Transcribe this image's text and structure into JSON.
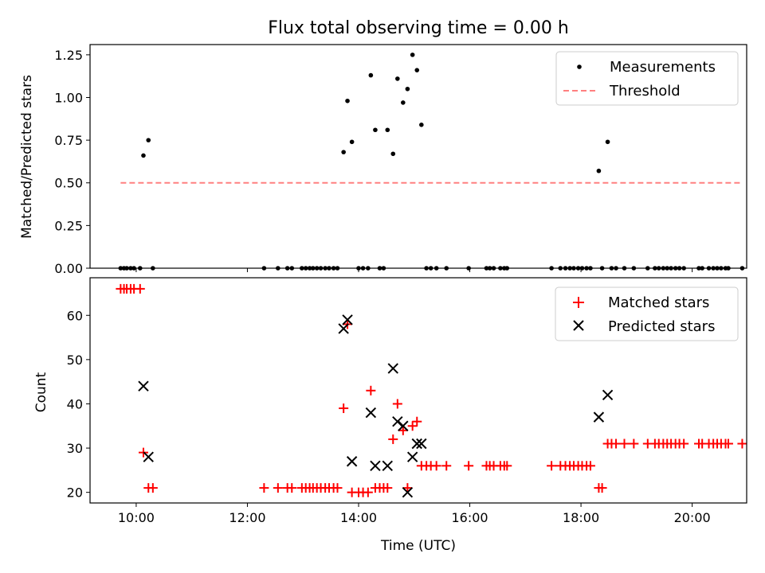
{
  "chart_data": [
    {
      "type": "scatter",
      "title": "Flux total observing time = 0.00 h",
      "xlabel": "",
      "ylabel": "Matched/Predicted stars",
      "xlim": [
        9.17,
        20.98
      ],
      "ylim": [
        0.0,
        1.31
      ],
      "yticks": [
        0.0,
        0.25,
        0.5,
        0.75,
        1.0,
        1.25
      ],
      "ytick_labels": [
        "0.00",
        "0.25",
        "0.50",
        "0.75",
        "1.00",
        "1.25"
      ],
      "xticks": [
        10,
        12,
        14,
        16,
        18,
        20
      ],
      "legend": {
        "placement": "top-right",
        "entries": [
          "Measurements",
          "Threshold"
        ]
      },
      "series": [
        {
          "name": "Measurements",
          "marker": "dot",
          "color": "#000000",
          "points": [
            [
              9.72,
              0
            ],
            [
              9.78,
              0
            ],
            [
              9.83,
              0
            ],
            [
              9.9,
              0
            ],
            [
              9.96,
              0
            ],
            [
              10.07,
              0
            ],
            [
              10.13,
              0.66
            ],
            [
              10.22,
              0.75
            ],
            [
              10.3,
              0
            ],
            [
              12.3,
              0
            ],
            [
              12.55,
              0
            ],
            [
              12.72,
              0
            ],
            [
              12.8,
              0
            ],
            [
              12.98,
              0
            ],
            [
              13.05,
              0
            ],
            [
              13.12,
              0
            ],
            [
              13.18,
              0
            ],
            [
              13.25,
              0
            ],
            [
              13.32,
              0
            ],
            [
              13.4,
              0
            ],
            [
              13.47,
              0
            ],
            [
              13.55,
              0
            ],
            [
              13.62,
              0
            ],
            [
              13.73,
              0.68
            ],
            [
              13.8,
              0.98
            ],
            [
              13.88,
              0.74
            ],
            [
              14.0,
              0
            ],
            [
              14.08,
              0
            ],
            [
              14.17,
              0
            ],
            [
              14.22,
              1.13
            ],
            [
              14.3,
              0.81
            ],
            [
              14.38,
              0
            ],
            [
              14.45,
              0
            ],
            [
              14.52,
              0.81
            ],
            [
              14.62,
              0.67
            ],
            [
              14.7,
              1.11
            ],
            [
              14.8,
              0.97
            ],
            [
              14.88,
              1.05
            ],
            [
              14.97,
              1.25
            ],
            [
              15.05,
              1.16
            ],
            [
              15.13,
              0.84
            ],
            [
              15.22,
              0
            ],
            [
              15.3,
              0
            ],
            [
              15.4,
              0
            ],
            [
              15.58,
              0
            ],
            [
              15.98,
              0
            ],
            [
              16.3,
              0
            ],
            [
              16.36,
              0
            ],
            [
              16.43,
              0
            ],
            [
              16.55,
              0
            ],
            [
              16.62,
              0
            ],
            [
              16.67,
              0
            ],
            [
              17.47,
              0
            ],
            [
              17.63,
              0
            ],
            [
              17.72,
              0
            ],
            [
              17.8,
              0
            ],
            [
              17.87,
              0
            ],
            [
              17.95,
              0
            ],
            [
              18.02,
              0
            ],
            [
              18.1,
              0
            ],
            [
              18.17,
              0
            ],
            [
              18.32,
              0.57
            ],
            [
              18.38,
              0
            ],
            [
              18.48,
              0.74
            ],
            [
              18.55,
              0
            ],
            [
              18.63,
              0
            ],
            [
              18.78,
              0
            ],
            [
              18.95,
              0
            ],
            [
              19.2,
              0
            ],
            [
              19.33,
              0
            ],
            [
              19.4,
              0
            ],
            [
              19.48,
              0
            ],
            [
              19.55,
              0
            ],
            [
              19.62,
              0
            ],
            [
              19.7,
              0
            ],
            [
              19.77,
              0
            ],
            [
              19.85,
              0
            ],
            [
              20.12,
              0
            ],
            [
              20.18,
              0
            ],
            [
              20.3,
              0
            ],
            [
              20.38,
              0
            ],
            [
              20.45,
              0
            ],
            [
              20.52,
              0
            ],
            [
              20.6,
              0
            ],
            [
              20.65,
              0
            ],
            [
              20.9,
              0
            ]
          ]
        },
        {
          "name": "Threshold",
          "style": "dashed",
          "color": "#ff8080",
          "points": [
            [
              9.72,
              0.5
            ],
            [
              20.9,
              0.5
            ]
          ]
        }
      ]
    },
    {
      "type": "scatter",
      "title": "",
      "xlabel": "Time (UTC)",
      "ylabel": "Count",
      "xlim": [
        9.17,
        20.98
      ],
      "ylim": [
        17.6,
        68.5
      ],
      "yticks": [
        20,
        30,
        40,
        50,
        60
      ],
      "ytick_labels": [
        "20",
        "30",
        "40",
        "50",
        "60"
      ],
      "xticks": [
        10,
        12,
        14,
        16,
        18,
        20
      ],
      "xtick_labels": [
        "10:00",
        "12:00",
        "14:00",
        "16:00",
        "18:00",
        "20:00"
      ],
      "legend": {
        "placement": "top-right",
        "entries": [
          "Matched stars",
          "Predicted stars"
        ]
      },
      "series": [
        {
          "name": "Matched stars",
          "marker": "plus",
          "color": "#ff0000",
          "points": [
            [
              9.72,
              66
            ],
            [
              9.78,
              66
            ],
            [
              9.83,
              66
            ],
            [
              9.9,
              66
            ],
            [
              9.96,
              66
            ],
            [
              10.07,
              66
            ],
            [
              10.13,
              29
            ],
            [
              10.22,
              21
            ],
            [
              10.3,
              21
            ],
            [
              12.3,
              21
            ],
            [
              12.55,
              21
            ],
            [
              12.72,
              21
            ],
            [
              12.8,
              21
            ],
            [
              12.98,
              21
            ],
            [
              13.05,
              21
            ],
            [
              13.12,
              21
            ],
            [
              13.18,
              21
            ],
            [
              13.25,
              21
            ],
            [
              13.32,
              21
            ],
            [
              13.4,
              21
            ],
            [
              13.47,
              21
            ],
            [
              13.55,
              21
            ],
            [
              13.62,
              21
            ],
            [
              13.73,
              39
            ],
            [
              13.8,
              58
            ],
            [
              13.88,
              20
            ],
            [
              14.0,
              20
            ],
            [
              14.08,
              20
            ],
            [
              14.17,
              20
            ],
            [
              14.22,
              43
            ],
            [
              14.3,
              21
            ],
            [
              14.38,
              21
            ],
            [
              14.45,
              21
            ],
            [
              14.52,
              21
            ],
            [
              14.62,
              32
            ],
            [
              14.7,
              40
            ],
            [
              14.8,
              34
            ],
            [
              14.88,
              21
            ],
            [
              14.97,
              35
            ],
            [
              15.05,
              36
            ],
            [
              15.13,
              26
            ],
            [
              15.22,
              26
            ],
            [
              15.3,
              26
            ],
            [
              15.4,
              26
            ],
            [
              15.58,
              26
            ],
            [
              15.98,
              26
            ],
            [
              16.3,
              26
            ],
            [
              16.36,
              26
            ],
            [
              16.43,
              26
            ],
            [
              16.55,
              26
            ],
            [
              16.62,
              26
            ],
            [
              16.67,
              26
            ],
            [
              17.47,
              26
            ],
            [
              17.63,
              26
            ],
            [
              17.72,
              26
            ],
            [
              17.8,
              26
            ],
            [
              17.87,
              26
            ],
            [
              17.95,
              26
            ],
            [
              18.02,
              26
            ],
            [
              18.1,
              26
            ],
            [
              18.17,
              26
            ],
            [
              18.32,
              21
            ],
            [
              18.38,
              21
            ],
            [
              18.48,
              31
            ],
            [
              18.55,
              31
            ],
            [
              18.63,
              31
            ],
            [
              18.78,
              31
            ],
            [
              18.95,
              31
            ],
            [
              19.2,
              31
            ],
            [
              19.33,
              31
            ],
            [
              19.4,
              31
            ],
            [
              19.48,
              31
            ],
            [
              19.55,
              31
            ],
            [
              19.62,
              31
            ],
            [
              19.7,
              31
            ],
            [
              19.77,
              31
            ],
            [
              19.85,
              31
            ],
            [
              20.12,
              31
            ],
            [
              20.18,
              31
            ],
            [
              20.3,
              31
            ],
            [
              20.38,
              31
            ],
            [
              20.45,
              31
            ],
            [
              20.52,
              31
            ],
            [
              20.6,
              31
            ],
            [
              20.65,
              31
            ],
            [
              20.9,
              31
            ]
          ]
        },
        {
          "name": "Predicted stars",
          "marker": "x",
          "color": "#000000",
          "points": [
            [
              10.13,
              44
            ],
            [
              10.22,
              28
            ],
            [
              13.73,
              57
            ],
            [
              13.8,
              59
            ],
            [
              13.88,
              27
            ],
            [
              14.22,
              38
            ],
            [
              14.3,
              26
            ],
            [
              14.52,
              26
            ],
            [
              14.62,
              48
            ],
            [
              14.7,
              36
            ],
            [
              14.8,
              35
            ],
            [
              14.88,
              20
            ],
            [
              14.97,
              28
            ],
            [
              15.05,
              31
            ],
            [
              15.13,
              31
            ],
            [
              18.32,
              37
            ],
            [
              18.48,
              42
            ]
          ]
        }
      ]
    }
  ]
}
